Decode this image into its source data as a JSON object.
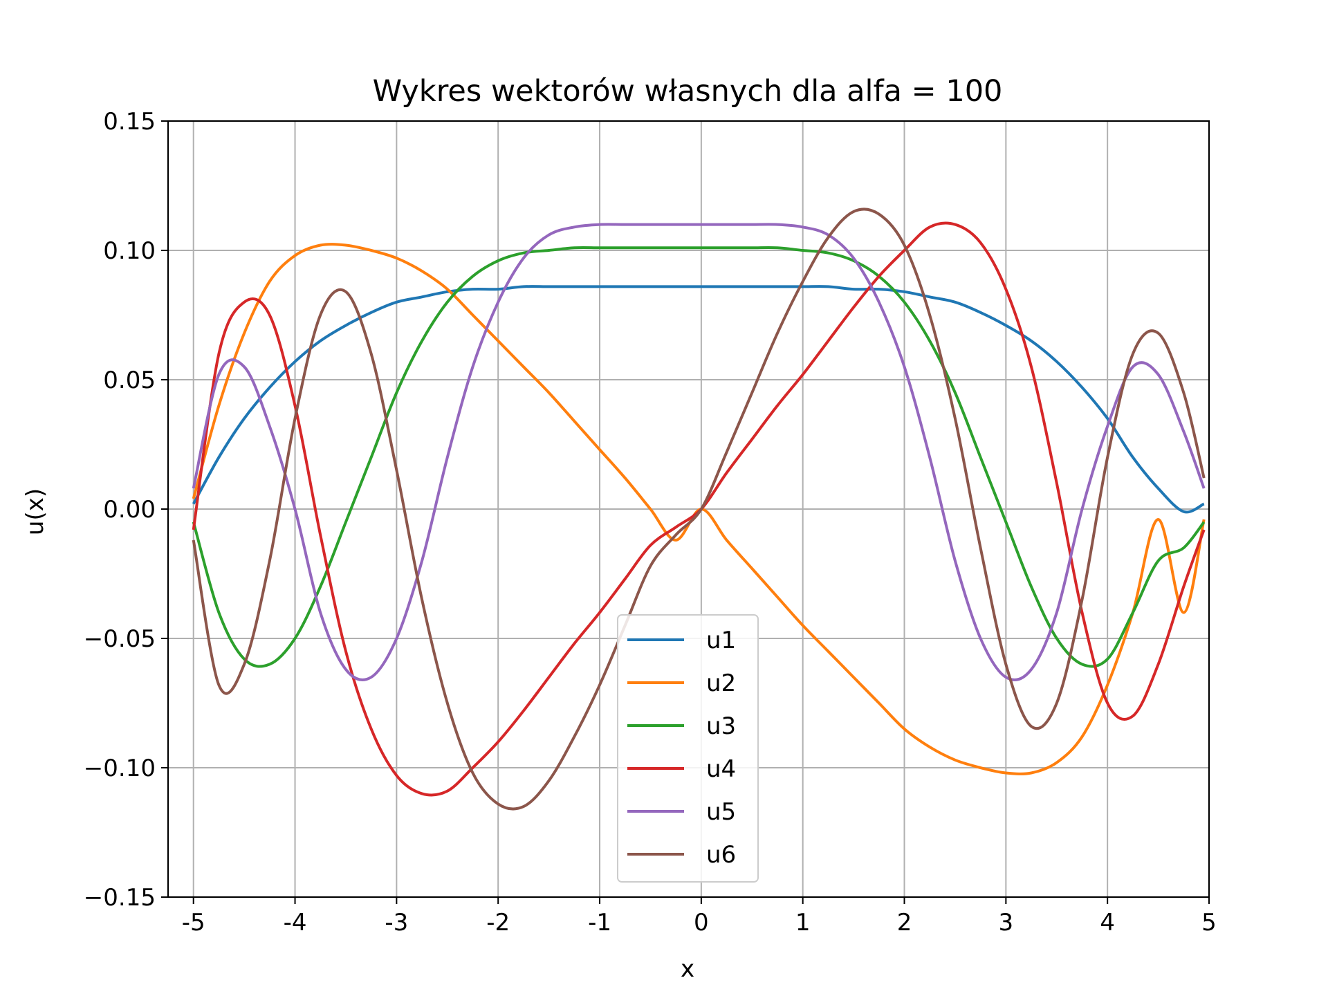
{
  "chart_data": {
    "type": "line",
    "title": "Wykres wektorów własnych dla alfa = 100",
    "xlabel": "x",
    "ylabel": "u(x)",
    "xlim": [
      -5.25,
      5.0
    ],
    "ylim": [
      -0.15,
      0.15
    ],
    "grid": true,
    "legend_position": "bottom-center",
    "x_ticks": [
      -5,
      -4,
      -3,
      -2,
      -1,
      0,
      1,
      2,
      3,
      4,
      5
    ],
    "x_tick_labels": [
      "-5",
      "-4",
      "-3",
      "-2",
      "-1",
      "0",
      "1",
      "2",
      "3",
      "4",
      "5"
    ],
    "y_ticks": [
      -0.15,
      -0.1,
      -0.05,
      0.0,
      0.05,
      0.1,
      0.15
    ],
    "y_tick_labels": [
      "−0.15",
      "−0.10",
      "−0.05",
      "0.00",
      "0.05",
      "0.10",
      "0.15"
    ],
    "x": [
      -5.0,
      -4.75,
      -4.5,
      -4.25,
      -4.0,
      -3.75,
      -3.5,
      -3.25,
      -3.0,
      -2.75,
      -2.5,
      -2.25,
      -2.0,
      -1.75,
      -1.5,
      -1.25,
      -1.0,
      -0.75,
      -0.5,
      -0.25,
      0.0,
      0.25,
      0.5,
      0.75,
      1.0,
      1.25,
      1.5,
      1.75,
      2.0,
      2.25,
      2.5,
      2.75,
      3.0,
      3.25,
      3.5,
      3.75,
      4.0,
      4.25,
      4.5,
      4.75,
      4.95
    ],
    "series": [
      {
        "name": "u1",
        "color": "#1f77b4",
        "values": [
          0.002,
          0.02,
          0.035,
          0.047,
          0.057,
          0.065,
          0.071,
          0.076,
          0.08,
          0.082,
          0.084,
          0.085,
          0.085,
          0.086,
          0.086,
          0.086,
          0.086,
          0.086,
          0.086,
          0.086,
          0.086,
          0.086,
          0.086,
          0.086,
          0.086,
          0.086,
          0.085,
          0.085,
          0.084,
          0.082,
          0.08,
          0.076,
          0.071,
          0.065,
          0.057,
          0.047,
          0.035,
          0.02,
          0.008,
          -0.001,
          0.002
        ]
      },
      {
        "name": "u2",
        "color": "#ff7f0e",
        "values": [
          0.004,
          0.04,
          0.068,
          0.088,
          0.098,
          0.102,
          0.102,
          0.1,
          0.097,
          0.092,
          0.085,
          0.075,
          0.065,
          0.055,
          0.045,
          0.034,
          0.023,
          0.012,
          0.0,
          -0.012,
          0.0,
          -0.012,
          -0.023,
          -0.034,
          -0.045,
          -0.055,
          -0.065,
          -0.075,
          -0.085,
          -0.092,
          -0.097,
          -0.1,
          -0.102,
          -0.102,
          -0.098,
          -0.088,
          -0.068,
          -0.04,
          -0.004,
          -0.04,
          -0.004
        ]
      },
      {
        "name": "u3",
        "color": "#2ca02c",
        "values": [
          -0.005,
          -0.04,
          -0.058,
          -0.06,
          -0.05,
          -0.03,
          -0.005,
          0.02,
          0.045,
          0.065,
          0.08,
          0.09,
          0.096,
          0.099,
          0.1,
          0.101,
          0.101,
          0.101,
          0.101,
          0.101,
          0.101,
          0.101,
          0.101,
          0.101,
          0.1,
          0.099,
          0.096,
          0.09,
          0.08,
          0.065,
          0.045,
          0.02,
          -0.005,
          -0.03,
          -0.05,
          -0.06,
          -0.058,
          -0.04,
          -0.02,
          -0.015,
          -0.005
        ]
      },
      {
        "name": "u4",
        "color": "#d62728",
        "values": [
          -0.008,
          0.06,
          0.08,
          0.075,
          0.04,
          -0.01,
          -0.055,
          -0.085,
          -0.103,
          -0.11,
          -0.109,
          -0.1,
          -0.09,
          -0.078,
          -0.065,
          -0.052,
          -0.04,
          -0.027,
          -0.014,
          -0.007,
          0.0,
          0.014,
          0.027,
          0.04,
          0.052,
          0.065,
          0.078,
          0.09,
          0.1,
          0.109,
          0.11,
          0.103,
          0.085,
          0.055,
          0.01,
          -0.04,
          -0.075,
          -0.08,
          -0.06,
          -0.03,
          -0.008
        ]
      },
      {
        "name": "u5",
        "color": "#9467bd",
        "values": [
          0.008,
          0.052,
          0.055,
          0.032,
          0.0,
          -0.04,
          -0.062,
          -0.065,
          -0.05,
          -0.02,
          0.02,
          0.055,
          0.08,
          0.097,
          0.106,
          0.109,
          0.11,
          0.11,
          0.11,
          0.11,
          0.11,
          0.11,
          0.11,
          0.11,
          0.109,
          0.106,
          0.097,
          0.08,
          0.055,
          0.02,
          -0.02,
          -0.05,
          -0.065,
          -0.062,
          -0.04,
          0.0,
          0.032,
          0.055,
          0.052,
          0.03,
          0.008
        ]
      },
      {
        "name": "u6",
        "color": "#8c564b",
        "values": [
          -0.012,
          -0.068,
          -0.06,
          -0.02,
          0.035,
          0.075,
          0.084,
          0.06,
          0.015,
          -0.035,
          -0.075,
          -0.102,
          -0.114,
          -0.115,
          -0.105,
          -0.088,
          -0.068,
          -0.045,
          -0.022,
          -0.01,
          0.0,
          0.022,
          0.045,
          0.068,
          0.088,
          0.105,
          0.115,
          0.114,
          0.102,
          0.075,
          0.035,
          -0.015,
          -0.06,
          -0.084,
          -0.075,
          -0.035,
          0.02,
          0.06,
          0.068,
          0.045,
          0.012
        ]
      }
    ]
  }
}
